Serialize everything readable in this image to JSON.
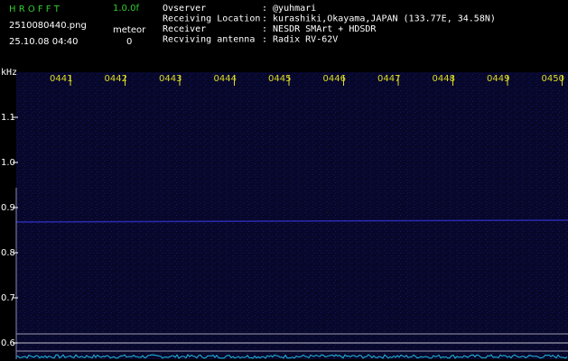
{
  "header": {
    "app_name": "H R O F F T",
    "version": "1.0.0f",
    "filename": "2510080440.png",
    "datetime": "25.10.08 04:40",
    "meteor_label": "meteor",
    "meteor_count": "0",
    "info": [
      {
        "label": "Ovserver",
        "value": ": @yuhmari"
      },
      {
        "label": "Receiving Location",
        "value": ": kurashiki,Okayama,JAPAN (133.77E, 34.58N)"
      },
      {
        "label": "Receiver",
        "value": ": NESDR SMArt + HDSDR"
      },
      {
        "label": "Recviving antenna",
        "value": ": Radix RV-62V"
      }
    ]
  },
  "spectrogram": {
    "y_unit": "kHz",
    "time_labels": [
      "0441",
      "0442",
      "0443",
      "0444",
      "0445",
      "0446",
      "0447",
      "0448",
      "0449",
      "0450"
    ],
    "yticks": [
      1.1,
      {
        "value": 1.0,
        "label": "1.0"
      },
      0.9,
      0.8,
      0.7,
      0.6
    ]
  }
}
